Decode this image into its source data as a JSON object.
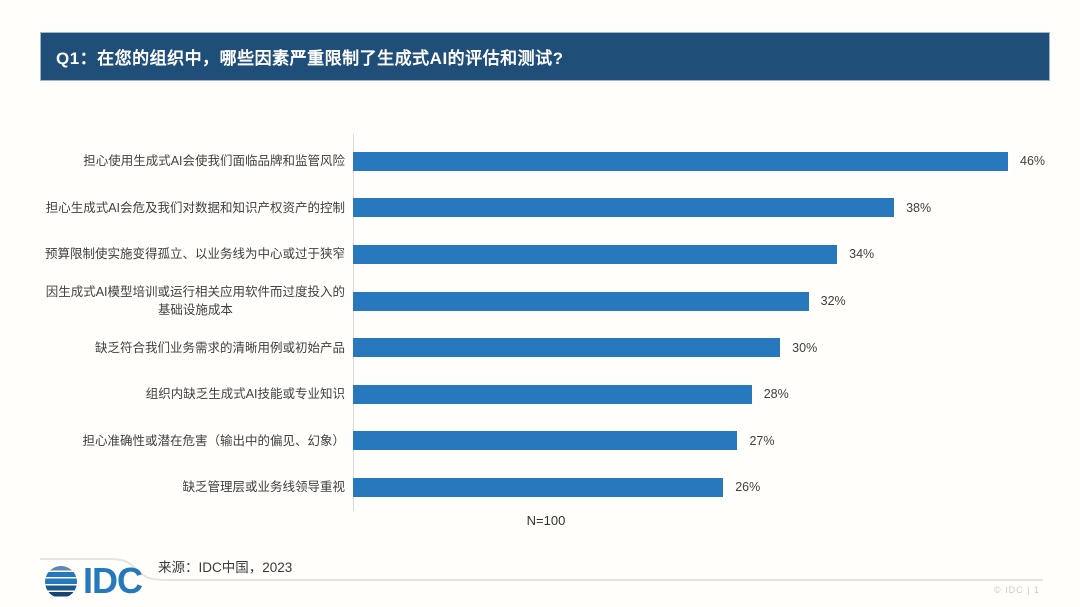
{
  "page": {
    "background": "#FFFEFA"
  },
  "header": {
    "title": "Q1：在您的组织中，哪些因素严重限制了生成式AI的评估和测试?",
    "bg_color": "#1F4E79",
    "text_color": "#FFFFFF"
  },
  "chart_data": {
    "type": "bar",
    "orientation": "horizontal",
    "categories": [
      "担心使用生成式AI会使我们面临品牌和监管风险",
      "担心生成式AI会危及我们对数据和知识产权资产的控制",
      "预算限制使实施变得孤立、以业务线为中心或过于狭窄",
      "因生成式AI模型培训或运行相关应用软件而过度投入的\n基础设施成本",
      "缺乏符合我们业务需求的清晰用例或初始产品",
      "组织内缺乏生成式AI技能或专业知识",
      "担心准确性或潜在危害（输出中的偏见、幻象）",
      "缺乏管理层或业务线领导重视"
    ],
    "values": [
      46,
      38,
      34,
      32,
      30,
      28,
      27,
      26
    ],
    "value_suffix": "%",
    "bar_color": "#2878BE",
    "sample_note": "N=100",
    "xlim": [
      0,
      48
    ],
    "grid": false,
    "legend": false
  },
  "footer": {
    "source": "来源：IDC中国，2023",
    "logo_text": "IDC",
    "page_info": "© IDC |  1"
  }
}
